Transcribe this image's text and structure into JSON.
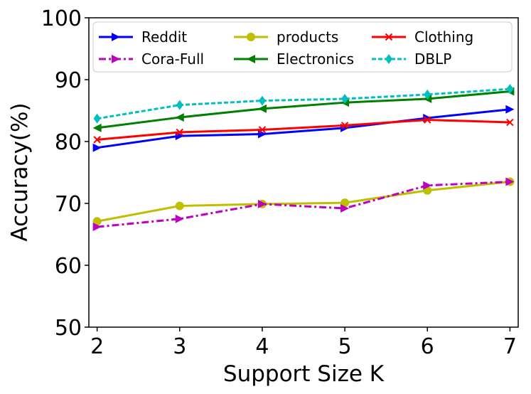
{
  "chart_data": {
    "type": "line",
    "title": "",
    "xlabel": "Support Size K",
    "ylabel": "Accuracy(%)",
    "x": [
      2,
      3,
      4,
      5,
      6,
      7
    ],
    "xlim": [
      1.9,
      7.1
    ],
    "ylim": [
      50,
      100
    ],
    "yticks": [
      50,
      60,
      70,
      80,
      90,
      100
    ],
    "grid": false,
    "legend_position": "top",
    "legend_columns": 3,
    "series": [
      {
        "name": "Reddit",
        "values": [
          79.0,
          80.9,
          81.2,
          82.2,
          83.8,
          85.2
        ],
        "color": "#0000ff",
        "marker": "triangle-right",
        "linestyle": "solid"
      },
      {
        "name": "products",
        "values": [
          67.1,
          69.6,
          69.9,
          70.1,
          72.1,
          73.5
        ],
        "color": "#bfbf00",
        "marker": "circle",
        "linestyle": "solid"
      },
      {
        "name": "Clothing",
        "values": [
          80.3,
          81.5,
          81.9,
          82.6,
          83.5,
          83.1
        ],
        "color": "#ff0000",
        "marker": "x",
        "linestyle": "solid"
      },
      {
        "name": "Cora-Full",
        "values": [
          66.2,
          67.5,
          69.9,
          69.2,
          72.9,
          73.5
        ],
        "color": "#bf00bf",
        "marker": "triangle-right",
        "linestyle": "dashdot"
      },
      {
        "name": "Electronics",
        "values": [
          82.2,
          83.9,
          85.3,
          86.3,
          86.9,
          88.1
        ],
        "color": "#008000",
        "marker": "triangle-left",
        "linestyle": "solid"
      },
      {
        "name": "DBLP",
        "values": [
          83.7,
          85.9,
          86.6,
          86.9,
          87.6,
          88.5
        ],
        "color": "#00bfbf",
        "marker": "diamond",
        "linestyle": "dashed"
      }
    ]
  }
}
